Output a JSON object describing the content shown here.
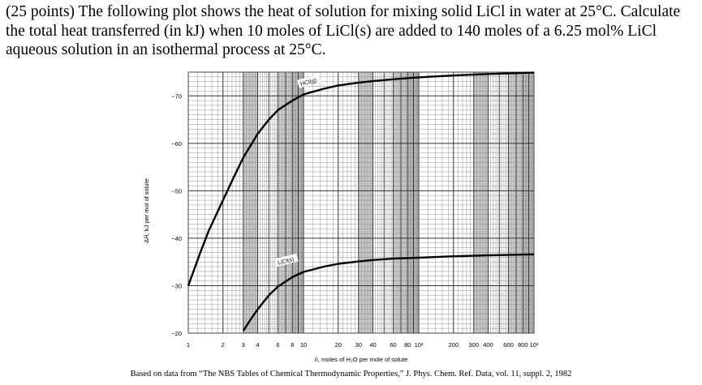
{
  "question": "(25 points) The following plot shows the heat of solution for mixing solid LiCl in water at 25°C. Calculate the total heat transferred (in kJ) when 10 moles of LiCl(s) are added to 140 moles of a 6.25 mol% LiCl aqueous solution in an isothermal process at 25°C.",
  "caption": "Based on data from “The NBS Tables of Chemical Thermodynamic Properties,” J. Phys. Chem. Ref. Data, vol. 11, suppl. 2, 1982",
  "chart_data": {
    "type": "line",
    "xlabel": "n̄, moles of H₂O per mole of solute",
    "ylabel": "ΔH̄, kJ per mol of solute",
    "xscale": "log",
    "xlim": [
      1,
      1000
    ],
    "ylim": [
      -20,
      -75
    ],
    "grid": true,
    "xticks": [
      "1",
      "2",
      "3",
      "4",
      "6",
      "8",
      "10",
      "20",
      "30",
      "40",
      "60",
      "80",
      "10²",
      "200",
      "300",
      "400",
      "600",
      "800",
      "10³"
    ],
    "xtick_values": [
      1,
      2,
      3,
      4,
      6,
      8,
      10,
      20,
      30,
      40,
      60,
      80,
      100,
      200,
      300,
      400,
      600,
      800,
      1000
    ],
    "yticks": [
      -70,
      -60,
      -50,
      -40,
      -30,
      -20
    ],
    "series": [
      {
        "name": "HCl(g)",
        "x": [
          1,
          1.25,
          1.5,
          2,
          2.5,
          3,
          4,
          5,
          6,
          8,
          10,
          15,
          20,
          30,
          40,
          60,
          100,
          200,
          400,
          1000
        ],
        "y": [
          -30,
          -36.5,
          -41.5,
          -48,
          -53,
          -57,
          -62,
          -65,
          -67,
          -69,
          -70.3,
          -71.5,
          -72.2,
          -72.8,
          -73.1,
          -73.5,
          -73.9,
          -74.3,
          -74.6,
          -74.9
        ]
      },
      {
        "name": "LiCl(s)",
        "x": [
          3,
          3.5,
          4,
          5,
          6,
          8,
          10,
          15,
          20,
          30,
          40,
          60,
          100,
          200,
          400,
          1000
        ],
        "y": [
          -20.5,
          -23,
          -25,
          -28,
          -29.8,
          -31.8,
          -32.9,
          -34,
          -34.6,
          -35.1,
          -35.4,
          -35.7,
          -35.9,
          -36.2,
          -36.4,
          -36.6
        ]
      }
    ]
  }
}
